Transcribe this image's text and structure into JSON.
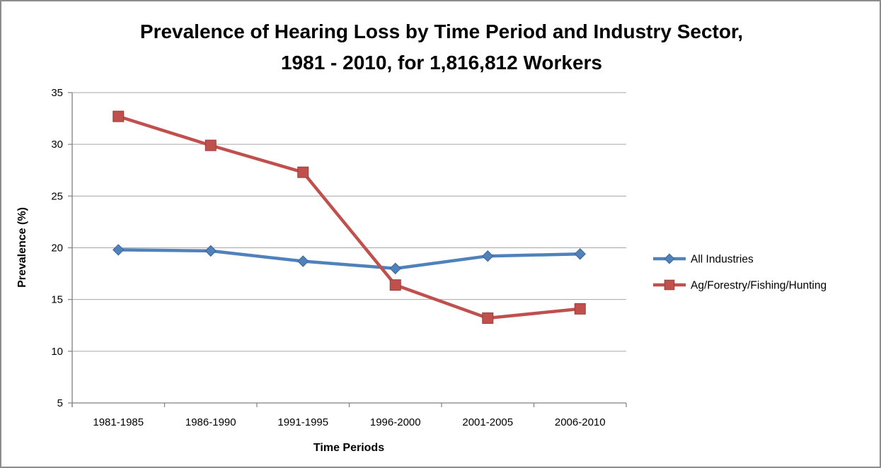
{
  "figure": {
    "background": "#FFFFFF",
    "border_color": "#8C8C8C"
  },
  "chart_data": {
    "type": "line",
    "title_line1": "Prevalence of Hearing Loss by Time Period and Industry Sector,",
    "title_line2": "1981 - 2010, for 1,816,812 Workers",
    "xlabel": "Time Periods",
    "ylabel": "Prevalence (%)",
    "ylim": [
      5,
      35
    ],
    "yticks": [
      5,
      10,
      15,
      20,
      25,
      30,
      35
    ],
    "grid": true,
    "legend_position": "right",
    "categories": [
      "1981-1985",
      "1986-1990",
      "1991-1995",
      "1996-2000",
      "2001-2005",
      "2006-2010"
    ],
    "series": [
      {
        "name": "All Industries",
        "marker": "diamond",
        "color": "#4F81BD",
        "marker_border": "#3A6596",
        "values": [
          19.8,
          19.7,
          18.7,
          18.0,
          19.2,
          19.4
        ]
      },
      {
        "name": "Ag/Forestry/Fishing/Hunting",
        "marker": "square",
        "color": "#C0504D",
        "marker_border": "#9E3B39",
        "values": [
          32.7,
          29.9,
          27.3,
          16.4,
          13.2,
          14.1
        ]
      }
    ],
    "colors": {
      "gridline": "#A6A6A6",
      "axis": "#808080",
      "text": "#000000"
    }
  }
}
